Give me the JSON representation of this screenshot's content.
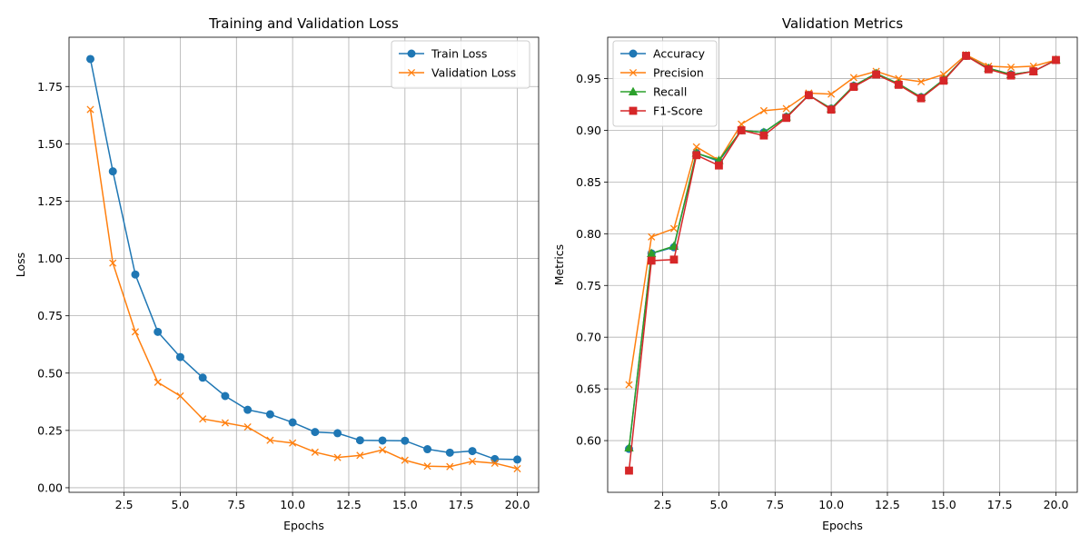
{
  "chart_data": [
    {
      "type": "line",
      "title": "Training and Validation Loss",
      "xlabel": "Epochs",
      "ylabel": "Loss",
      "xlim": [
        0.05,
        20.95
      ],
      "ylim": [
        -0.02,
        1.965
      ],
      "xticks": [
        2.5,
        5.0,
        7.5,
        10.0,
        12.5,
        15.0,
        17.5,
        20.0
      ],
      "xtick_labels": [
        "2.5",
        "5.0",
        "7.5",
        "10.0",
        "12.5",
        "15.0",
        "17.5",
        "20.0"
      ],
      "yticks": [
        0.0,
        0.25,
        0.5,
        0.75,
        1.0,
        1.25,
        1.5,
        1.75
      ],
      "ytick_labels": [
        "0.00",
        "0.25",
        "0.50",
        "0.75",
        "1.00",
        "1.25",
        "1.50",
        "1.75"
      ],
      "grid": true,
      "legend_position": "top-right",
      "x": [
        1,
        2,
        3,
        4,
        5,
        6,
        7,
        8,
        9,
        10,
        11,
        12,
        13,
        14,
        15,
        16,
        17,
        18,
        19,
        20
      ],
      "series": [
        {
          "name": "Train Loss",
          "color": "#1f77b4",
          "marker": "circle",
          "values": [
            1.87,
            1.38,
            0.93,
            0.68,
            0.57,
            0.48,
            0.4,
            0.34,
            0.32,
            0.285,
            0.243,
            0.238,
            0.207,
            0.206,
            0.205,
            0.168,
            0.153,
            0.16,
            0.125,
            0.123
          ]
        },
        {
          "name": "Validation Loss",
          "color": "#ff7f0e",
          "marker": "x",
          "values": [
            1.65,
            0.98,
            0.68,
            0.46,
            0.4,
            0.3,
            0.283,
            0.265,
            0.207,
            0.195,
            0.155,
            0.132,
            0.141,
            0.165,
            0.12,
            0.094,
            0.092,
            0.115,
            0.107,
            0.083
          ]
        }
      ]
    },
    {
      "type": "line",
      "title": "Validation Metrics",
      "xlabel": "Epochs",
      "ylabel": "Metrics",
      "xlim": [
        0.05,
        20.95
      ],
      "ylim": [
        0.55,
        0.99
      ],
      "xticks": [
        2.5,
        5.0,
        7.5,
        10.0,
        12.5,
        15.0,
        17.5,
        20.0
      ],
      "xtick_labels": [
        "2.5",
        "5.0",
        "7.5",
        "10.0",
        "12.5",
        "15.0",
        "17.5",
        "20.0"
      ],
      "yticks": [
        0.6,
        0.65,
        0.7,
        0.75,
        0.8,
        0.85,
        0.9,
        0.95
      ],
      "ytick_labels": [
        "0.60",
        "0.65",
        "0.70",
        "0.75",
        "0.80",
        "0.85",
        "0.90",
        "0.95"
      ],
      "grid": true,
      "legend_position": "top-left",
      "x": [
        1,
        2,
        3,
        4,
        5,
        6,
        7,
        8,
        9,
        10,
        11,
        12,
        13,
        14,
        15,
        16,
        17,
        18,
        19,
        20
      ],
      "series": [
        {
          "name": "Accuracy",
          "color": "#1f77b4",
          "marker": "circle",
          "values": [
            0.592,
            0.781,
            0.787,
            0.878,
            0.87,
            0.9,
            0.898,
            0.913,
            0.934,
            0.921,
            0.943,
            0.955,
            0.945,
            0.932,
            0.949,
            0.972,
            0.96,
            0.954,
            0.957,
            0.968
          ]
        },
        {
          "name": "Precision",
          "color": "#ff7f0e",
          "marker": "x",
          "values": [
            0.654,
            0.797,
            0.805,
            0.884,
            0.871,
            0.906,
            0.919,
            0.921,
            0.936,
            0.935,
            0.951,
            0.957,
            0.95,
            0.947,
            0.954,
            0.973,
            0.962,
            0.961,
            0.962,
            0.968
          ]
        },
        {
          "name": "Recall",
          "color": "#2ca02c",
          "marker": "triangle",
          "values": [
            0.593,
            0.781,
            0.788,
            0.878,
            0.871,
            0.9,
            0.898,
            0.913,
            0.934,
            0.921,
            0.943,
            0.955,
            0.945,
            0.932,
            0.949,
            0.972,
            0.96,
            0.954,
            0.957,
            0.968
          ]
        },
        {
          "name": "F1-Score",
          "color": "#d62728",
          "marker": "square",
          "values": [
            0.571,
            0.774,
            0.775,
            0.876,
            0.866,
            0.9,
            0.895,
            0.912,
            0.934,
            0.92,
            0.942,
            0.954,
            0.944,
            0.931,
            0.948,
            0.972,
            0.959,
            0.953,
            0.957,
            0.968
          ]
        }
      ]
    }
  ]
}
